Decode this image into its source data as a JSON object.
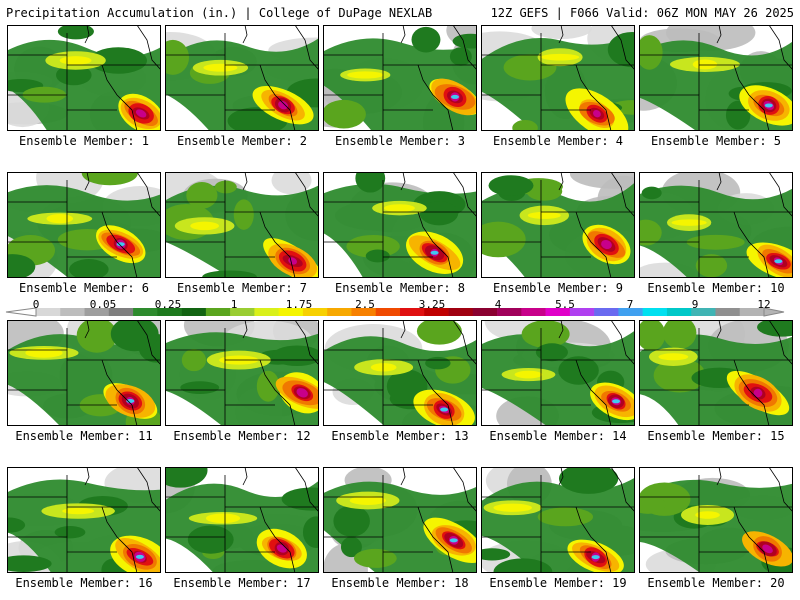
{
  "header": {
    "left": "Precipitation Accumulation (in.) | College of DuPage NEXLAB",
    "right": "12Z GEFS | F066 Valid: 06Z MON MAY 26 2025"
  },
  "members": [
    {
      "label": "Ensemble Member: 1",
      "id": 1
    },
    {
      "label": "Ensemble Member: 2",
      "id": 2
    },
    {
      "label": "Ensemble Member: 3",
      "id": 3
    },
    {
      "label": "Ensemble Member: 4",
      "id": 4
    },
    {
      "label": "Ensemble Member: 5",
      "id": 5
    },
    {
      "label": "Ensemble Member: 6",
      "id": 6
    },
    {
      "label": "Ensemble Member: 7",
      "id": 7
    },
    {
      "label": "Ensemble Member: 8",
      "id": 8
    },
    {
      "label": "Ensemble Member: 9",
      "id": 9
    },
    {
      "label": "Ensemble Member: 10",
      "id": 10
    },
    {
      "label": "Ensemble Member: 11",
      "id": 11
    },
    {
      "label": "Ensemble Member: 12",
      "id": 12
    },
    {
      "label": "Ensemble Member: 13",
      "id": 13
    },
    {
      "label": "Ensemble Member: 14",
      "id": 14
    },
    {
      "label": "Ensemble Member: 15",
      "id": 15
    },
    {
      "label": "Ensemble Member: 16",
      "id": 16
    },
    {
      "label": "Ensemble Member: 17",
      "id": 17
    },
    {
      "label": "Ensemble Member: 18",
      "id": 18
    },
    {
      "label": "Ensemble Member: 19",
      "id": 19
    },
    {
      "label": "Ensemble Member: 20",
      "id": 20
    }
  ],
  "colorbar": {
    "tick_labels": [
      "0",
      "0.05",
      "0.25",
      "1",
      "1.75",
      "2.5",
      "3.25",
      "4",
      "5.5",
      "7",
      "9",
      "12"
    ],
    "colors": [
      "#d8d8d8",
      "#bdbdbd",
      "#9e9e9e",
      "#7f7f7f",
      "#2e8b2e",
      "#1e7a1e",
      "#126412",
      "#5aa51e",
      "#9acd32",
      "#d9f01a",
      "#f5f500",
      "#f7d000",
      "#f7a800",
      "#f78000",
      "#f04a00",
      "#e01010",
      "#c00000",
      "#a00010",
      "#8a0030",
      "#a0005a",
      "#c8008a",
      "#e000c8",
      "#b040f0",
      "#6a6af0",
      "#40a0f0",
      "#00e0f0",
      "#00c8c8",
      "#40b4b4",
      "#909090",
      "#b4b4b4"
    ]
  }
}
